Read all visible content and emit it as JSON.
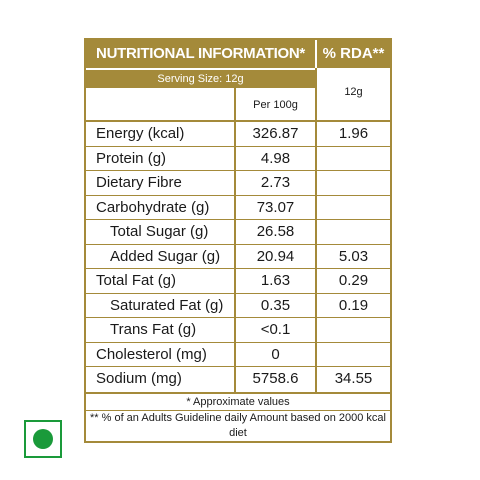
{
  "header": {
    "title": "NUTRITIONAL INFORMATION*",
    "rda_title": "% RDA**",
    "serving_size": "Serving Size:  12g",
    "per_100g": "Per 100g",
    "rda_unit": "12g"
  },
  "rows": [
    {
      "name": "Energy (kcal)",
      "per100g": "326.87",
      "rda": "1.96"
    },
    {
      "name": "Protein (g)",
      "per100g": "4.98",
      "rda": ""
    },
    {
      "name": "Dietary Fibre",
      "per100g": "2.73",
      "rda": ""
    },
    {
      "name": "Carbohydrate (g)",
      "per100g": "73.07",
      "rda": ""
    },
    {
      "name": "Total Sugar (g)",
      "per100g": "26.58",
      "rda": ""
    },
    {
      "name": "Added Sugar (g)",
      "per100g": "20.94",
      "rda": "5.03"
    },
    {
      "name": "Total Fat (g)",
      "per100g": "1.63",
      "rda": "0.29"
    },
    {
      "name": "Saturated Fat (g)",
      "per100g": "0.35",
      "rda": "0.19"
    },
    {
      "name": "Trans Fat (g)",
      "per100g": "<0.1",
      "rda": ""
    },
    {
      "name": "Cholesterol (mg)",
      "per100g": "0",
      "rda": ""
    },
    {
      "name": "Sodium (mg)",
      "per100g": "5758.6",
      "rda": "34.55"
    }
  ],
  "footer": {
    "approx": "* Approximate values",
    "guideline": "** % of an Adults Guideline daily Amount based on 2000 kcal diet"
  },
  "symbols": {
    "veg_mark": "veg-mark-icon"
  },
  "colors": {
    "gold": "#a48a3a",
    "veg_green": "#1a9a3a"
  }
}
